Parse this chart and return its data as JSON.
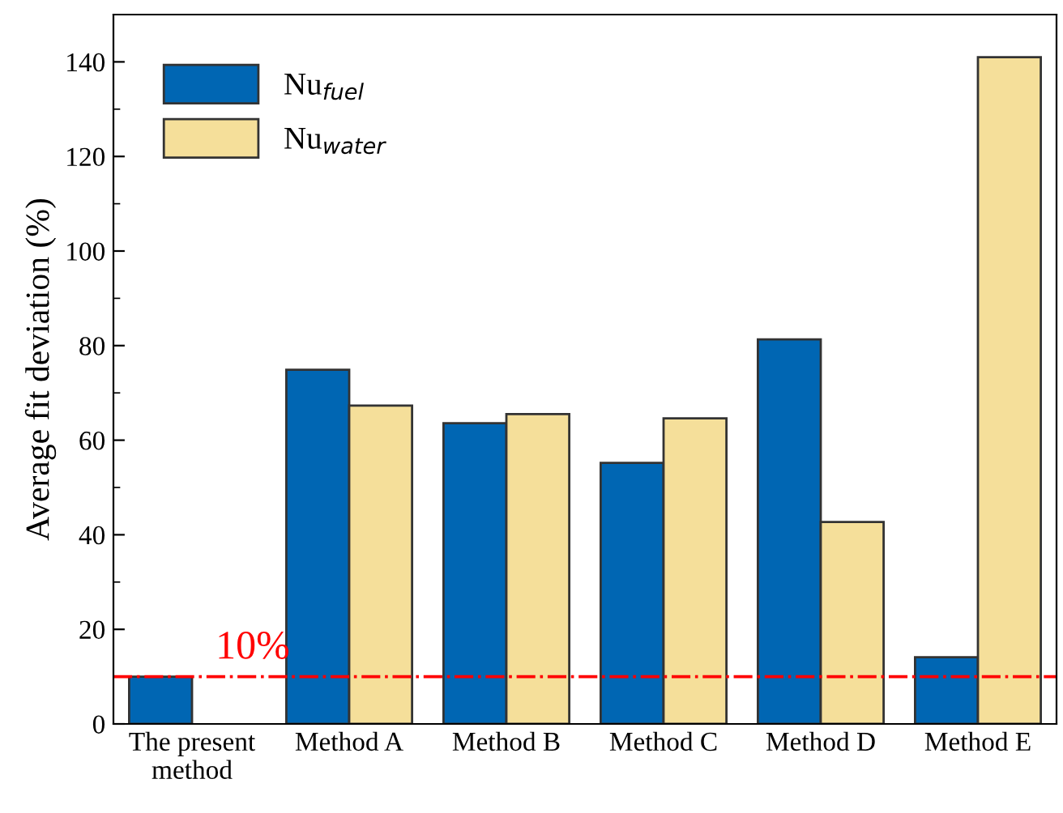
{
  "chart_data": {
    "type": "bar",
    "ylabel": "Average fit deviation (%)",
    "categories": [
      "The present\nmethod",
      "Method A",
      "Method B",
      "Method C",
      "Method D",
      "Method E"
    ],
    "series": [
      {
        "name": "Nu$_{fuel}$",
        "color": "#0066b3",
        "values": [
          10,
          74.9,
          63.6,
          55.2,
          81.3,
          14.1
        ]
      },
      {
        "name": "Nu$_{water}$",
        "color": "#f5df9a",
        "values": [
          null,
          67.3,
          65.5,
          64.6,
          42.7,
          141
        ]
      }
    ],
    "ylim": [
      0,
      150
    ],
    "yticks": [
      0,
      20,
      40,
      60,
      80,
      100,
      120,
      140
    ],
    "ref_lines": [
      {
        "axis": "y",
        "value": 10,
        "label": "10%",
        "color": "#ff0000",
        "line_style": "dashdot"
      }
    ],
    "legend": "top left",
    "grid": false
  }
}
